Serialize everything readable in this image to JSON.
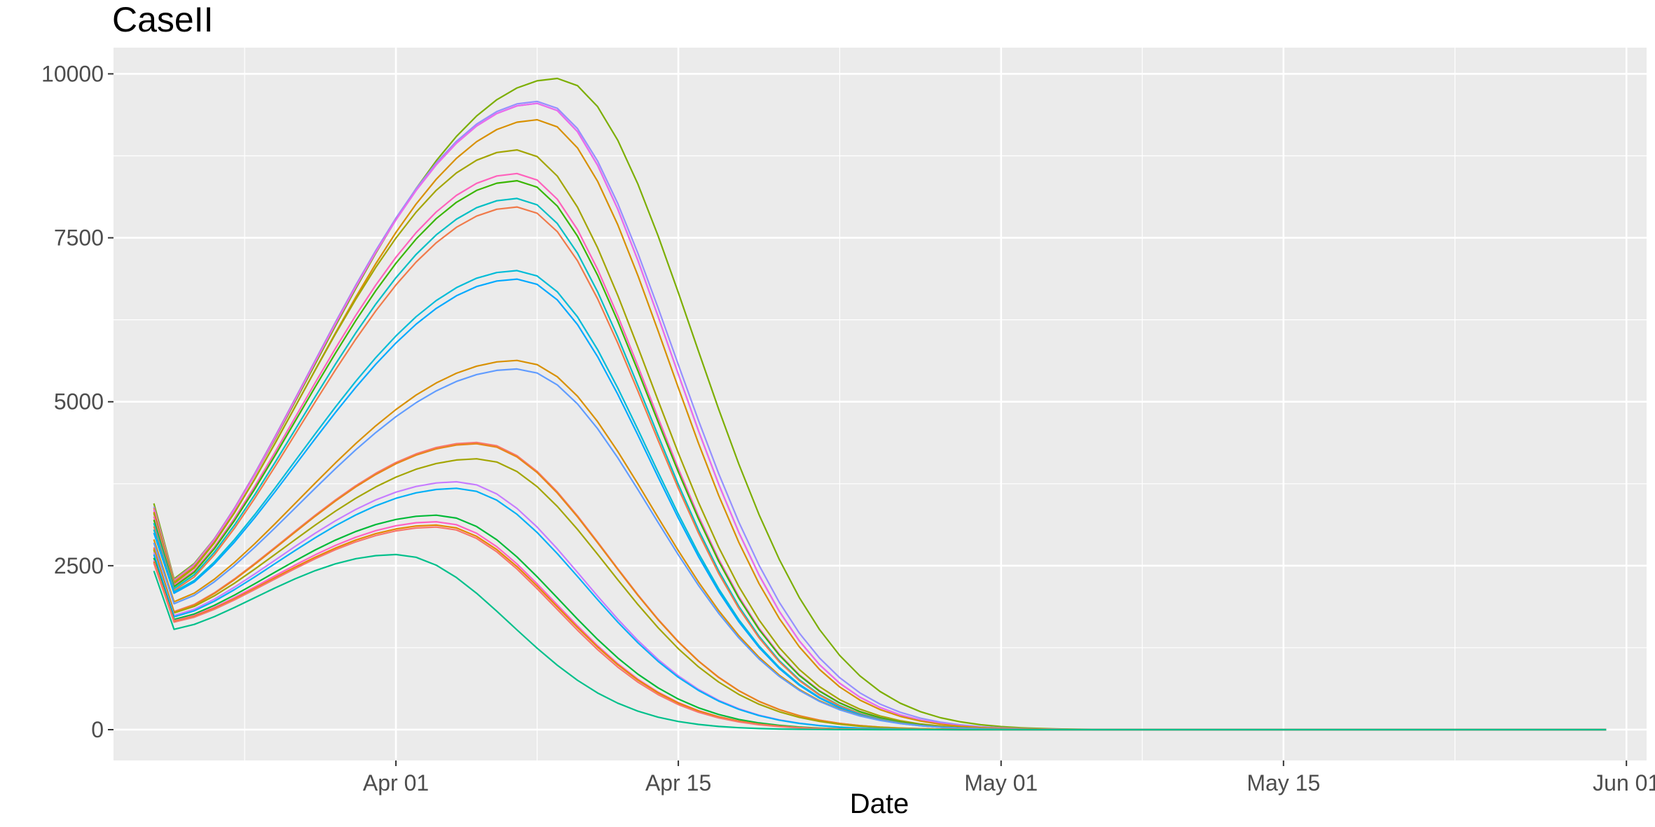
{
  "chart_data": {
    "type": "line",
    "title": "CaseII",
    "xlabel": "Date",
    "ylabel": "",
    "x_axis": {
      "type": "date",
      "range": [
        "2020-03-18",
        "2020-06-02"
      ],
      "ticks": [
        {
          "date": "2020-04-01",
          "label": "Apr 01"
        },
        {
          "date": "2020-04-15",
          "label": "Apr 15"
        },
        {
          "date": "2020-05-01",
          "label": "May 01"
        },
        {
          "date": "2020-05-15",
          "label": "May 15"
        },
        {
          "date": "2020-06-01",
          "label": "Jun 01"
        }
      ]
    },
    "y_axis": {
      "range": [
        -470,
        10400
      ],
      "ticks": [
        {
          "value": 0,
          "label": "0"
        },
        {
          "value": 2500,
          "label": "2500"
        },
        {
          "value": 5000,
          "label": "5000"
        },
        {
          "value": 7500,
          "label": "7500"
        },
        {
          "value": 10000,
          "label": "10000"
        }
      ]
    },
    "grid": true,
    "legend": "none",
    "background": "#EBEBEB",
    "series": [
      {
        "color": "#7CAE00",
        "start": 3450,
        "trough": 2300,
        "peak": 9930,
        "peak_date": "2020-04-09",
        "w1": 9.5,
        "w2": 9.5
      },
      {
        "color": "#9590FF",
        "start": 3400,
        "trough": 2280,
        "peak": 9580,
        "peak_date": "2020-04-08",
        "w1": 9.5,
        "w2": 9.5
      },
      {
        "color": "#F8766D",
        "start": 3380,
        "trough": 2270,
        "peak": 9550,
        "peak_date": "2020-04-08",
        "w1": 9.5,
        "w2": 9.3
      },
      {
        "color": "#E76BF3",
        "start": 3350,
        "trough": 2260,
        "peak": 9550,
        "peak_date": "2020-04-08",
        "w1": 9.5,
        "w2": 9.3
      },
      {
        "color": "#D89000",
        "start": 3320,
        "trough": 2250,
        "peak": 9300,
        "peak_date": "2020-04-08",
        "w1": 9.4,
        "w2": 9.2
      },
      {
        "color": "#A3A500",
        "start": 3300,
        "trough": 2230,
        "peak": 8840,
        "peak_date": "2020-04-07",
        "w1": 9.3,
        "w2": 9.3
      },
      {
        "color": "#FF62BC",
        "start": 3250,
        "trough": 2200,
        "peak": 8480,
        "peak_date": "2020-04-07",
        "w1": 9.2,
        "w2": 9.2
      },
      {
        "color": "#39B600",
        "start": 3200,
        "trough": 2180,
        "peak": 8370,
        "peak_date": "2020-04-07",
        "w1": 9.2,
        "w2": 9.2
      },
      {
        "color": "#00BFC4",
        "start": 3150,
        "trough": 2150,
        "peak": 8100,
        "peak_date": "2020-04-07",
        "w1": 9.1,
        "w2": 9.1
      },
      {
        "color": "#F07A4A",
        "start": 3100,
        "trough": 2120,
        "peak": 7970,
        "peak_date": "2020-04-07",
        "w1": 9.0,
        "w2": 9.1
      },
      {
        "color": "#00BCD8",
        "start": 3050,
        "trough": 2100,
        "peak": 7000,
        "peak_date": "2020-04-07",
        "w1": 8.9,
        "w2": 9.2
      },
      {
        "color": "#00A9FF",
        "start": 3000,
        "trough": 2080,
        "peak": 6870,
        "peak_date": "2020-04-07",
        "w1": 8.9,
        "w2": 9.2
      },
      {
        "color": "#D89000",
        "start": 2900,
        "trough": 1950,
        "peak": 5630,
        "peak_date": "2020-04-07",
        "w1": 9.0,
        "w2": 9.4
      },
      {
        "color": "#619CFF",
        "start": 2850,
        "trough": 1920,
        "peak": 5500,
        "peak_date": "2020-04-07",
        "w1": 9.0,
        "w2": 9.4
      },
      {
        "color": "#F8766D",
        "start": 2780,
        "trough": 1800,
        "peak": 4380,
        "peak_date": "2020-04-05",
        "w1": 8.6,
        "w2": 9.2
      },
      {
        "color": "#E7861B",
        "start": 2760,
        "trough": 1790,
        "peak": 4360,
        "peak_date": "2020-04-05",
        "w1": 8.6,
        "w2": 9.2
      },
      {
        "color": "#A3A500",
        "start": 2740,
        "trough": 1780,
        "peak": 4130,
        "peak_date": "2020-04-05",
        "w1": 8.6,
        "w2": 9.1
      },
      {
        "color": "#C77CFF",
        "start": 2700,
        "trough": 1740,
        "peak": 3780,
        "peak_date": "2020-04-04",
        "w1": 8.4,
        "w2": 8.9
      },
      {
        "color": "#00B0F6",
        "start": 2670,
        "trough": 1720,
        "peak": 3680,
        "peak_date": "2020-04-04",
        "w1": 8.4,
        "w2": 8.9
      },
      {
        "color": "#00BA38",
        "start": 2620,
        "trough": 1680,
        "peak": 3270,
        "peak_date": "2020-04-03",
        "w1": 8.2,
        "w2": 8.6
      },
      {
        "color": "#FF61C3",
        "start": 2580,
        "trough": 1660,
        "peak": 3170,
        "peak_date": "2020-04-03",
        "w1": 8.1,
        "w2": 8.4
      },
      {
        "color": "#E58700",
        "start": 2560,
        "trough": 1650,
        "peak": 3120,
        "peak_date": "2020-04-03",
        "w1": 8.1,
        "w2": 8.4
      },
      {
        "color": "#F8766D",
        "start": 2540,
        "trough": 1640,
        "peak": 3090,
        "peak_date": "2020-04-03",
        "w1": 8.0,
        "w2": 8.3
      },
      {
        "color": "#00C08B",
        "start": 2420,
        "trough": 1530,
        "peak": 2670,
        "peak_date": "2020-04-01",
        "w1": 7.8,
        "w2": 8.0
      }
    ],
    "series_start": "2020-03-20",
    "series_trough": "2020-03-21",
    "series_end": "2020-05-31",
    "point_interval_days": 1
  }
}
